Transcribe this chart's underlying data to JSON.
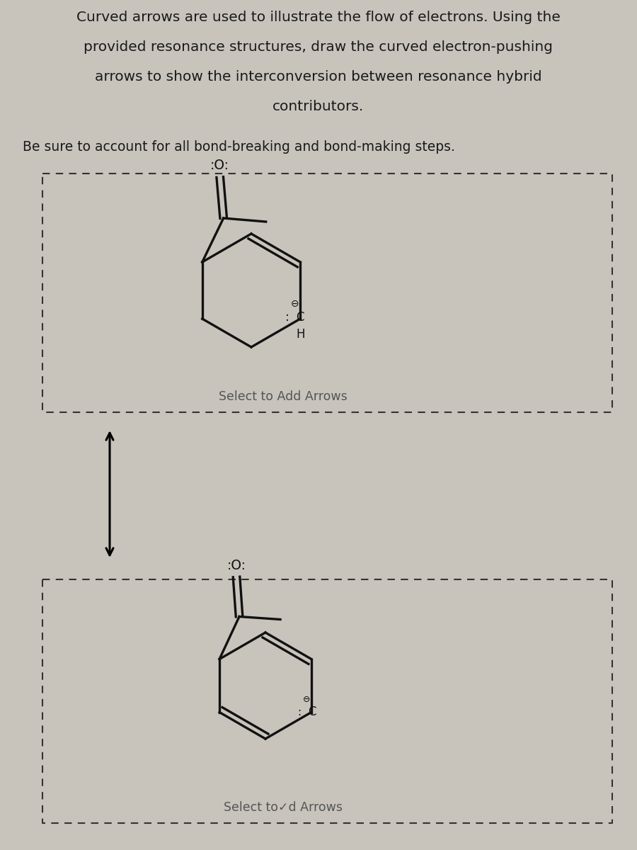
{
  "title_lines": [
    "Curved arrows are used to illustrate the flow of electrons. Using the",
    "provided resonance structures, draw the curved electron-pushing",
    "arrows to show the interconversion between resonance hybrid",
    "contributors."
  ],
  "subtitle": "Be sure to account for all bond-breaking and bond-making steps.",
  "label_top": "Select to Add Arrows",
  "label_bottom": "Select to✓d Arrows",
  "bg_color": "#c8c4bc",
  "text_color": "#1a1a1a",
  "label_color": "#555555",
  "ring_color": "#111111",
  "ring_lw": 2.4,
  "title_fontsize": 14.5,
  "subtitle_fontsize": 13.5,
  "label_fontsize": 12.5
}
